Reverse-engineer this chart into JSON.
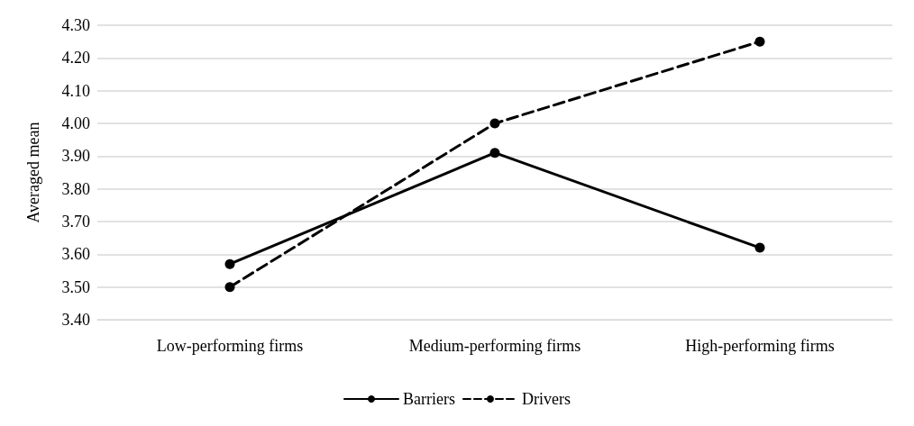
{
  "chart_data": {
    "type": "line",
    "ylabel": "Averaged mean",
    "categories": [
      "Low-performing firms",
      "Medium-performing firms",
      "High-performing firms"
    ],
    "series": [
      {
        "name": "Barriers",
        "color": "#000000",
        "values": [
          3.57,
          3.91,
          3.62
        ],
        "line_style": "solid"
      },
      {
        "name": "Drivers",
        "color": "#000000",
        "values": [
          3.5,
          4.0,
          4.25
        ],
        "line_style": "dashed"
      }
    ],
    "ylim": [
      3.4,
      4.3
    ],
    "yticks": [
      {
        "value": 3.4,
        "label": "3.40"
      },
      {
        "value": 3.5,
        "label": "3.50"
      },
      {
        "value": 3.6,
        "label": "3.60"
      },
      {
        "value": 3.7,
        "label": "3.70"
      },
      {
        "value": 3.8,
        "label": "3.80"
      },
      {
        "value": 3.9,
        "label": "3.90"
      },
      {
        "value": 4.0,
        "label": "4.00"
      },
      {
        "value": 4.1,
        "label": "4.10"
      },
      {
        "value": 4.2,
        "label": "4.20"
      },
      {
        "value": 4.3,
        "label": "4.30"
      }
    ],
    "grid": "y",
    "legend": "bottom",
    "marker": "circle"
  }
}
